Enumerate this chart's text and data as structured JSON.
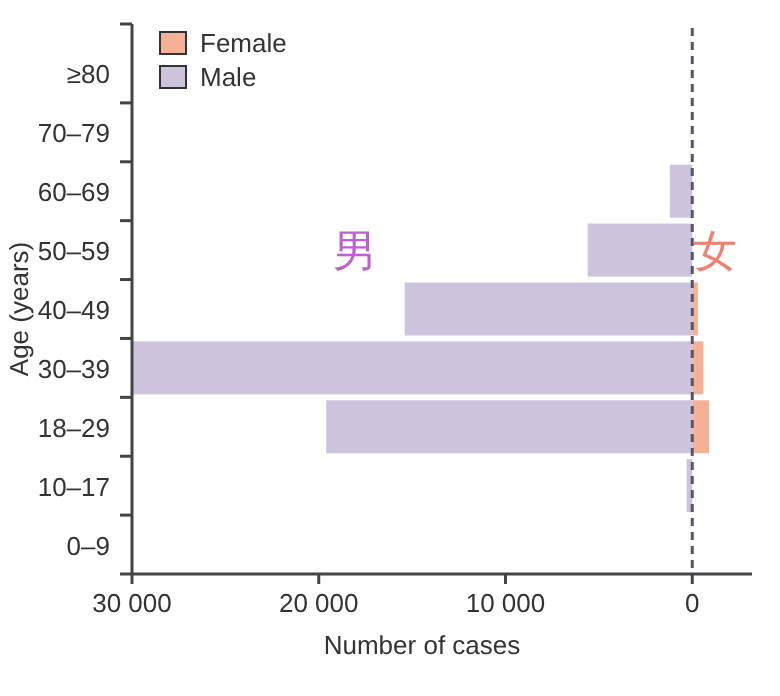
{
  "chart_data": {
    "type": "bar",
    "orientation": "horizontal",
    "xlabel": "Number of cases",
    "ylabel": "Age (years)",
    "categories": [
      "≥80",
      "70–79",
      "60–69",
      "50–59",
      "40–49",
      "30–39",
      "18–29",
      "10–17",
      "0–9"
    ],
    "series": [
      {
        "name": "Female",
        "color": "#f4b196",
        "values": [
          0,
          0,
          0,
          0,
          -300,
          -600,
          -900,
          0,
          0
        ]
      },
      {
        "name": "Male",
        "color": "#cdc3dd",
        "values": [
          0,
          0,
          1200,
          5600,
          15400,
          30000,
          19600,
          300,
          null
        ]
      }
    ],
    "xlim": [
      30000,
      -3200
    ],
    "xticks": [
      {
        "value": 30000,
        "label": "30 000"
      },
      {
        "value": 20000,
        "label": "20 000"
      },
      {
        "value": 10000,
        "label": "10 000"
      },
      0
    ],
    "ref_lines": [
      {
        "axis": "x",
        "value": 0,
        "color": "#555566",
        "line_style": "dashed"
      }
    ],
    "annotations": [
      "男",
      "女"
    ],
    "legend": "top left"
  }
}
